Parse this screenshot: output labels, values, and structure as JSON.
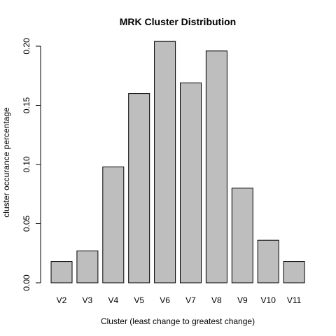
{
  "chart_data": {
    "type": "bar",
    "title": "MRK Cluster Distribution",
    "xlabel": "Cluster (least change to greatest change)",
    "ylabel": "cluster occurance percentage",
    "categories": [
      "V2",
      "V3",
      "V4",
      "V5",
      "V6",
      "V7",
      "V8",
      "V9",
      "V10",
      "V11"
    ],
    "values": [
      0.018,
      0.027,
      0.098,
      0.16,
      0.204,
      0.169,
      0.196,
      0.08,
      0.036,
      0.018
    ],
    "ylim": [
      0,
      0.2
    ],
    "yticks": [
      0.0,
      0.05,
      0.1,
      0.15,
      0.2
    ],
    "ytick_labels": [
      "0.00",
      "0.05",
      "0.10",
      "0.15",
      "0.20"
    ],
    "bar_color": "#bebebe",
    "edge_color": "#000000",
    "grid": false
  }
}
